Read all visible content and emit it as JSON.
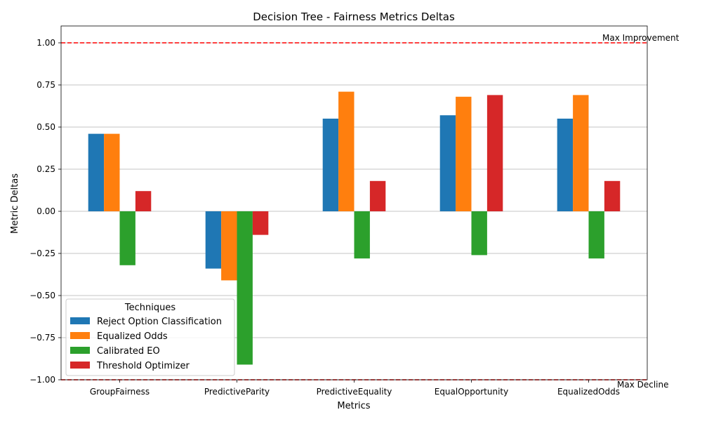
{
  "chart_data": {
    "type": "bar",
    "title": "Decision Tree - Fairness Metrics Deltas",
    "xlabel": "Metrics",
    "ylabel": "Metric Deltas",
    "categories": [
      "GroupFairness",
      "PredictiveParity",
      "PredictiveEquality",
      "EqualOpportunity",
      "EqualizedOdds"
    ],
    "series": [
      {
        "name": "Reject Option Classification",
        "color": "#1f77b4",
        "values": [
          0.46,
          -0.34,
          0.55,
          0.57,
          0.55
        ]
      },
      {
        "name": "Equalized Odds",
        "color": "#ff7f0e",
        "values": [
          0.46,
          -0.41,
          0.71,
          0.68,
          0.69
        ]
      },
      {
        "name": "Calibrated EO",
        "color": "#2ca02c",
        "values": [
          -0.32,
          -0.91,
          -0.28,
          -0.26,
          -0.28
        ]
      },
      {
        "name": "Threshold Optimizer",
        "color": "#d62728",
        "values": [
          0.12,
          -0.14,
          0.18,
          0.69,
          0.18
        ]
      }
    ],
    "ylim": [
      -1.0,
      1.1
    ],
    "yticks": [
      -1.0,
      -0.75,
      -0.5,
      -0.25,
      0.0,
      0.25,
      0.5,
      0.75,
      1.0
    ],
    "ytick_labels": [
      "−1.00",
      "−0.75",
      "−0.50",
      "−0.25",
      "0.00",
      "0.25",
      "0.50",
      "0.75",
      "1.00"
    ],
    "grid": "y-axis",
    "legend": {
      "title": "Techniques",
      "placement": "lower-left"
    },
    "reference_lines": [
      {
        "value": 1.0,
        "label": "Max Improvement",
        "color": "#ff0000",
        "style": "dashed"
      },
      {
        "value": -1.0,
        "label": "Max Decline",
        "color": "#ff0000",
        "style": "dashed"
      }
    ]
  }
}
